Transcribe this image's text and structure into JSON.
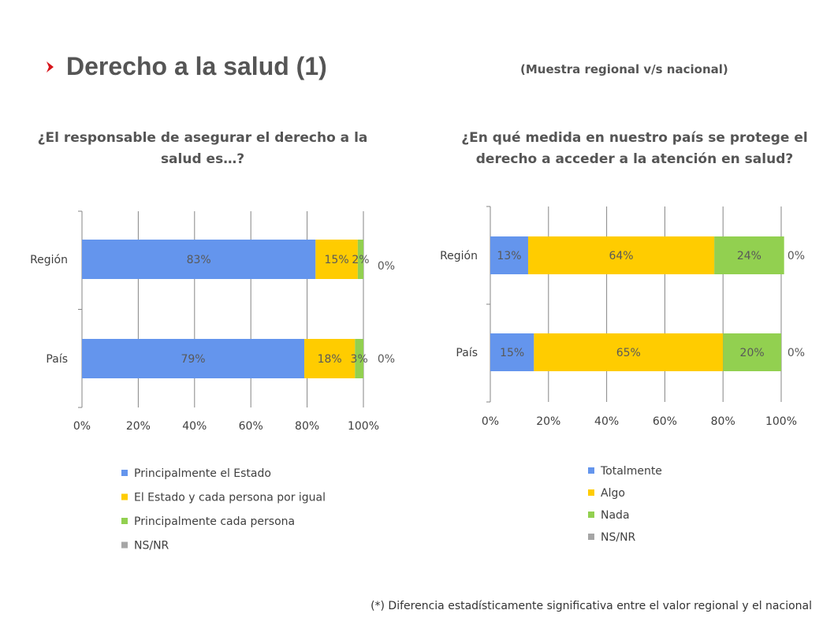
{
  "header": {
    "title": "Derecho a la salud (1)",
    "subtitle": "(Muestra regional v/s nacional)",
    "bullet_icon": "chevron-right-icon",
    "accent_color": "#d7141a"
  },
  "footnote": "(*) Diferencia estadísticamente significativa entre el valor regional y el nacional",
  "chart_data": [
    {
      "type": "bar",
      "orientation": "horizontal",
      "stacked": true,
      "title": "¿El responsable de asegurar el derecho a la salud es…?",
      "categories": [
        "Región",
        "País"
      ],
      "xlim": [
        0,
        100
      ],
      "xticks": [
        "0%",
        "20%",
        "40%",
        "60%",
        "80%",
        "100%"
      ],
      "grid": true,
      "legend": "bottom",
      "series": [
        {
          "name": "Principalmente el Estado",
          "color": "#6495ed",
          "values": [
            83,
            79
          ],
          "labels": [
            "83%",
            "79%"
          ]
        },
        {
          "name": "El Estado y cada persona por igual",
          "color": "#ffcc00",
          "values": [
            15,
            18
          ],
          "labels": [
            "15%",
            "18%"
          ]
        },
        {
          "name": "Principalmente cada persona",
          "color": "#92d050",
          "values": [
            2,
            3
          ],
          "labels": [
            "2%",
            "3%"
          ]
        },
        {
          "name": "NS/NR",
          "color": "#a6a6a6",
          "values": [
            0,
            0
          ],
          "labels": [
            "0%",
            "0%"
          ]
        }
      ]
    },
    {
      "type": "bar",
      "orientation": "horizontal",
      "stacked": true,
      "title": "¿En qué medida en nuestro país se protege el derecho a acceder a la atención en salud?",
      "categories": [
        "Región",
        "País"
      ],
      "xlim": [
        0,
        100
      ],
      "xticks": [
        "0%",
        "20%",
        "40%",
        "60%",
        "80%",
        "100%"
      ],
      "grid": true,
      "legend": "bottom",
      "series": [
        {
          "name": "Totalmente",
          "color": "#6495ed",
          "values": [
            13,
            15
          ],
          "labels": [
            "13%",
            "15%"
          ]
        },
        {
          "name": "Algo",
          "color": "#ffcc00",
          "values": [
            64,
            65
          ],
          "labels": [
            "64%",
            "65%"
          ]
        },
        {
          "name": "Nada",
          "color": "#92d050",
          "values": [
            24,
            20
          ],
          "labels": [
            "24%",
            "20%"
          ]
        },
        {
          "name": "NS/NR",
          "color": "#a6a6a6",
          "values": [
            0,
            0
          ],
          "labels": [
            "0%",
            "0%"
          ]
        }
      ]
    }
  ]
}
